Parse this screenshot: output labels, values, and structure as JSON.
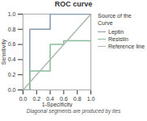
{
  "chart_data": {
    "type": "line",
    "title": "ROC curve",
    "xlabel": "1-Specificity",
    "ylabel": "Sensitivity",
    "footnote": "Diagonal segments are produced by ties",
    "legend_title": "Source of the\nCurve",
    "legend": "right",
    "grid": false,
    "xlim": [
      0.0,
      1.0
    ],
    "ylim": [
      0.0,
      1.0
    ],
    "xticks": [
      {
        "value": 0.0,
        "label": "0.0"
      },
      0.2,
      0.4,
      0.6,
      0.8,
      {
        "value": 1.0,
        "label": "1.0"
      }
    ],
    "yticks": [
      {
        "value": 0.0,
        "label": "0.0"
      },
      0.2,
      0.4,
      0.6,
      0.8,
      {
        "value": 1.0,
        "label": "1.0"
      }
    ],
    "series": [
      {
        "name": "Leptin",
        "color": "#8899aa",
        "x": [
          0.0,
          0.1,
          0.1,
          0.4,
          0.4,
          1.0
        ],
        "values": [
          0.0,
          0.0,
          0.8,
          0.8,
          1.0,
          1.0
        ]
      },
      {
        "name": "Resistin",
        "color": "#88bb99",
        "x": [
          0.0,
          0.1,
          0.1,
          0.4,
          0.4,
          0.6,
          0.6,
          1.0
        ],
        "values": [
          0.0,
          0.0,
          0.25,
          0.25,
          0.6,
          0.6,
          0.65,
          0.65
        ]
      },
      {
        "name": "Reference line",
        "color": "#aabbaa",
        "x": [
          0.0,
          1.0
        ],
        "values": [
          0.0,
          1.0
        ]
      }
    ]
  }
}
